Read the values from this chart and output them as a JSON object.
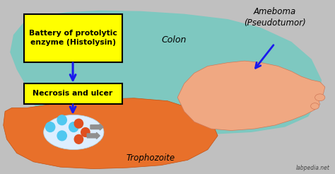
{
  "bg_color": "#c0c0c0",
  "colon_color": "#7ec8c0",
  "trophozoite_color": "#e8702a",
  "ameboma_color": "#f0a882",
  "label_box_color": "#ffff00",
  "label_box_edge": "#000000",
  "arrow_color": "#1a1aee",
  "text_color": "#000000",
  "label_battery": "Battery of protolytic\nenzyme (Histolysin)",
  "label_necrosis": "Necrosis and ulcer",
  "label_colon": "Colon",
  "label_trophozoite": "Trophozoite",
  "label_ameboma": "Ameboma\n(Pseudotumor)",
  "label_watermark": "labpedia.net",
  "figsize": [
    4.74,
    2.46
  ],
  "dpi": 100
}
